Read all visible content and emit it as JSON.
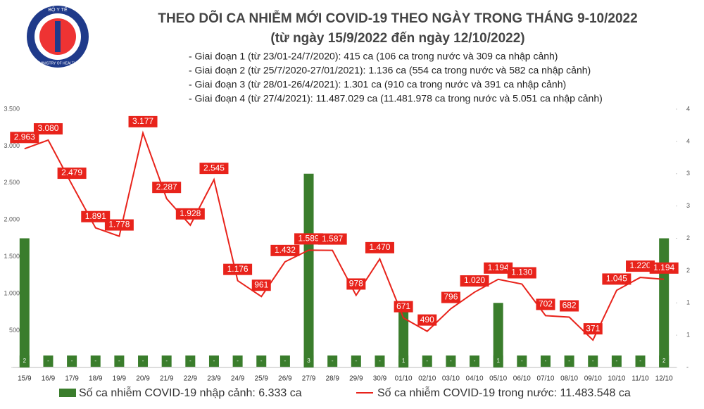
{
  "logo": {
    "top": "BỘ Y TẾ",
    "bottom": "MINISTRY OF HEALTH"
  },
  "chart_data": {
    "type": "bar-line",
    "title": "THEO DÕI CA NHIỄM MỚI COVID-19 THEO NGÀY TRONG THÁNG 9-10/2022",
    "subtitle": "(từ ngày 15/9/2022 đến ngày 12/10/2022)",
    "notes": [
      "- Giai đoạn 1 (từ 23/01-24/7/2020): 415 ca (106 ca trong nước và 309 ca nhập cảnh)",
      "- Giai đoạn 2 (từ 25/7/2020-27/01/2021): 1.136 ca (554 ca trong nước và 582 ca nhập cảnh)",
      "- Giai đoạn 3 (từ 28/01-26/4/2021): 1.301 ca (910 ca trong nước và 391 ca nhập cảnh)",
      "- Giai đoạn 4 (từ 27/4/2021): 11.487.029 ca (11.481.978 ca trong nước và 5.051 ca nhập cảnh)"
    ],
    "categories": [
      "15/9",
      "16/9",
      "17/9",
      "18/9",
      "19/9",
      "20/9",
      "21/9",
      "22/9",
      "23/9",
      "24/9",
      "25/9",
      "26/9",
      "27/9",
      "28/9",
      "29/9",
      "30/9",
      "01/10",
      "02/10",
      "03/10",
      "04/10",
      "05/10",
      "06/10",
      "07/10",
      "08/10",
      "09/10",
      "10/10",
      "11/10",
      "12/10"
    ],
    "series": [
      {
        "name": "Số ca nhiễm COVID-19 nhập cảnh: 6.333 ca",
        "type": "bar",
        "axis": "y2",
        "color": "#3a7d2c",
        "values": [
          2,
          0,
          0,
          0,
          0,
          0,
          0,
          0,
          0,
          0,
          0,
          0,
          3,
          0,
          0,
          0,
          1,
          0,
          0,
          0,
          1,
          0,
          0,
          0,
          0,
          0,
          0,
          2
        ],
        "value_labels": [
          "2",
          "-",
          "-",
          "-",
          "-",
          "-",
          "-",
          "-",
          "-",
          "-",
          "-",
          "-",
          "3",
          "-",
          "-",
          "-",
          "1",
          "-",
          "-",
          "-",
          "1",
          "-",
          "-",
          "-",
          "-",
          "-",
          "-",
          "2"
        ]
      },
      {
        "name": "Số ca nhiễm COVID-19 trong nước: 11.483.548 ca",
        "type": "line",
        "axis": "y",
        "color": "#e8231b",
        "values": [
          2963,
          3080,
          2479,
          1891,
          1778,
          3177,
          2287,
          1928,
          2545,
          1176,
          961,
          1432,
          1589,
          1587,
          978,
          1470,
          671,
          490,
          796,
          1020,
          1194,
          1130,
          702,
          682,
          371,
          1045,
          1220,
          1194
        ],
        "value_labels": [
          "2.963",
          "3.080",
          "2.479",
          "1.891",
          "1.778",
          "3.177",
          "2.287",
          "1.928",
          "2.545",
          "1.176",
          "961",
          "1.432",
          "1.589",
          "1.587",
          "978",
          "1.470",
          "671",
          "490",
          "796",
          "1.020",
          "1.194",
          "1.130",
          "702",
          "682",
          "371",
          "1.045",
          "1.220",
          "1.194"
        ]
      }
    ],
    "ylim": [
      0,
      3500
    ],
    "yticks": [
      {
        "value": 0,
        "label": "-"
      },
      500,
      {
        "value": 1000,
        "label": "1.000"
      },
      {
        "value": 1500,
        "label": "1.500"
      },
      {
        "value": 2000,
        "label": "2.000"
      },
      {
        "value": 2500,
        "label": "2.500"
      },
      {
        "value": 3000,
        "label": "3.000"
      },
      {
        "value": 3500,
        "label": "3.500"
      }
    ],
    "y2lim": [
      0,
      4
    ],
    "y2ticks": [
      {
        "value": 0,
        "label": "-"
      },
      {
        "value": 0.5,
        "label": "1"
      },
      1,
      {
        "value": 1.5,
        "label": "2"
      },
      2,
      {
        "value": 2.5,
        "label": "3"
      },
      3,
      {
        "value": 3.5,
        "label": "4"
      },
      4
    ]
  }
}
